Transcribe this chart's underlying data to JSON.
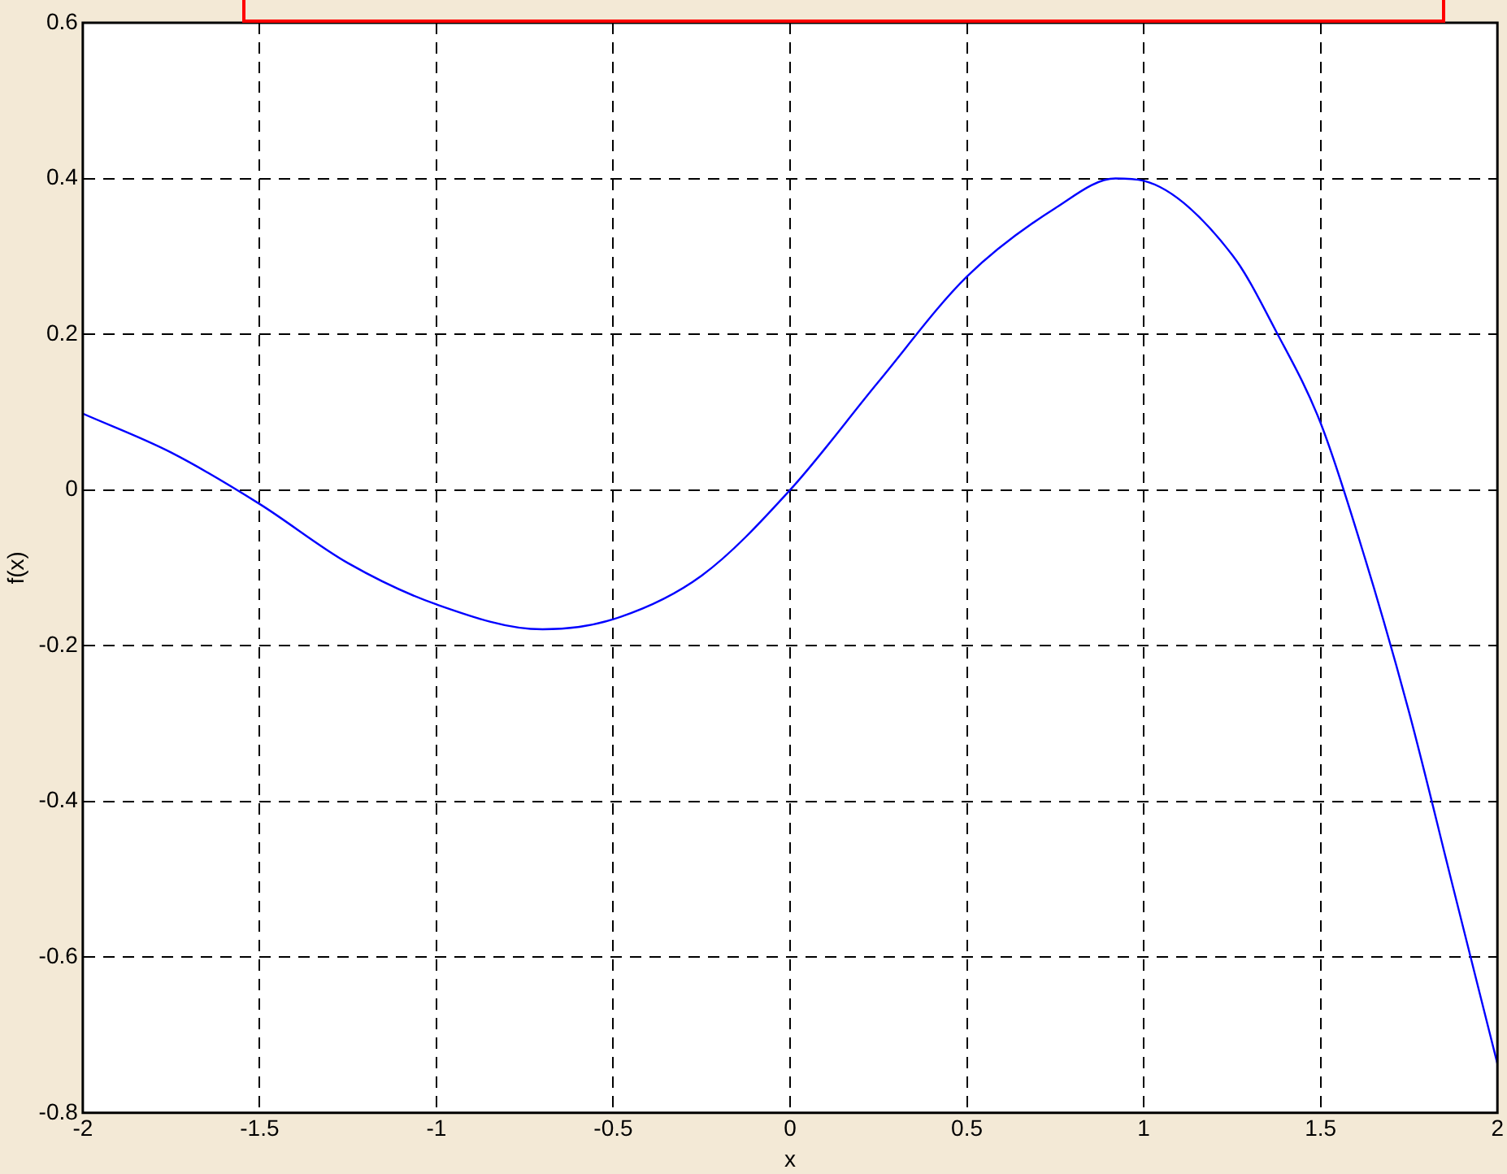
{
  "chart_data": {
    "type": "line",
    "xlabel": "x",
    "ylabel": "f(x)",
    "series": [
      {
        "color": "#0000ff",
        "x": [
          -2,
          -1.75,
          -1.5,
          -1.25,
          -1,
          -0.7,
          -0.5,
          -0.25,
          0,
          0.25,
          0.5,
          0.75,
          0.92,
          1,
          1.25,
          1.375,
          1.5,
          1.625,
          1.75,
          1.875,
          2
        ],
        "values": [
          0.098,
          0.048,
          -0.018,
          -0.094,
          -0.147,
          -0.179,
          -0.166,
          -0.11,
          0,
          0.139,
          0.274,
          0.362,
          0.4,
          0.397,
          0.302,
          0.203,
          0.086,
          -0.087,
          -0.285,
          -0.511,
          -0.737
        ]
      }
    ],
    "xlim": [
      -2,
      2
    ],
    "xticks": [
      -2,
      -1.5,
      -1,
      -0.5,
      0,
      0.5,
      1,
      1.5,
      2
    ],
    "ylim": [
      -0.8,
      0.6
    ],
    "yticks": [
      -0.8,
      -0.6,
      -0.4,
      -0.2,
      0,
      0.2,
      0.4,
      0.6
    ],
    "grid": true,
    "legend": false,
    "marker": "none",
    "line_style": "solid"
  }
}
